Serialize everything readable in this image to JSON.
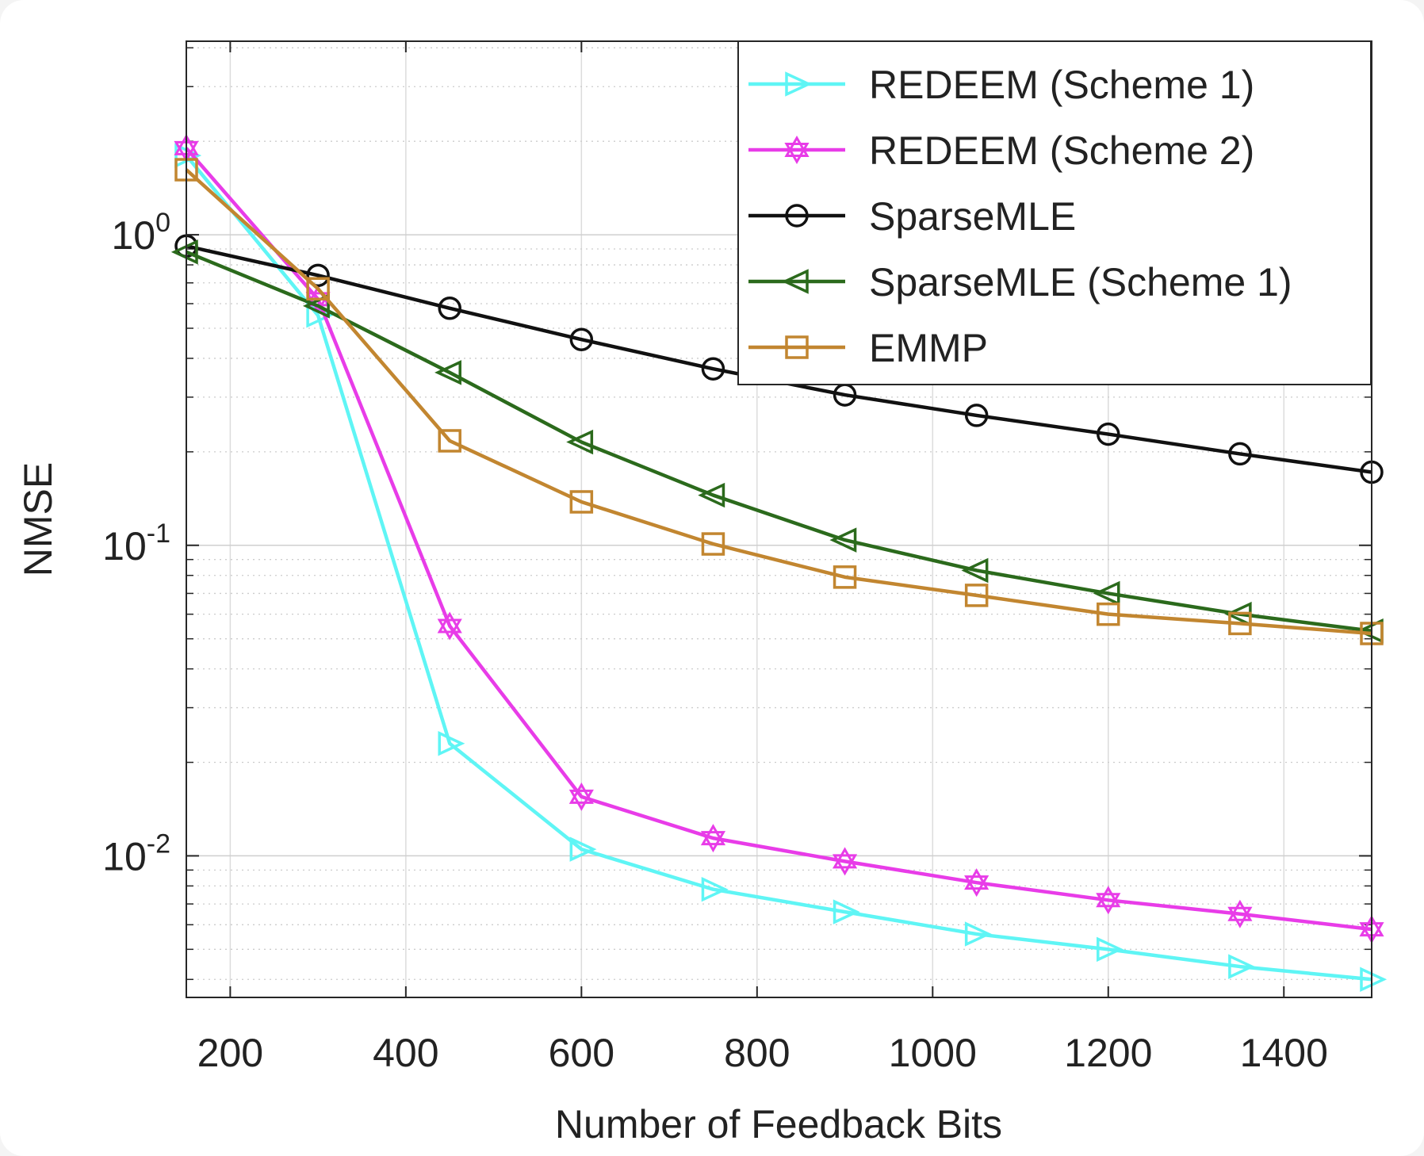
{
  "chart_data": {
    "type": "line",
    "xlabel": "Number of Feedback Bits",
    "ylabel": "NMSE",
    "yscale": "log",
    "xlim": [
      150,
      1500
    ],
    "ylim": [
      0.0035,
      4.2
    ],
    "grid": true,
    "legend_position": "top-right",
    "xticks": [
      200,
      400,
      600,
      800,
      1000,
      1200,
      1400
    ],
    "xtick_labels": [
      "200",
      "400",
      "600",
      "800",
      "1000",
      "1200",
      "1400"
    ],
    "yticks": [
      {
        "value": 1,
        "base": "10",
        "exp": "0"
      },
      {
        "value": 0.1,
        "base": "10",
        "exp": "-1"
      },
      {
        "value": 0.01,
        "base": "10",
        "exp": "-2"
      }
    ],
    "x": [
      150,
      300,
      450,
      600,
      750,
      900,
      1050,
      1200,
      1350,
      1500
    ],
    "series": [
      {
        "name": "REDEEM (Scheme 1)",
        "color": "#5ff5f5",
        "marker": "triangle-right",
        "values": [
          1.8,
          0.55,
          0.023,
          0.0105,
          0.0078,
          0.0066,
          0.0056,
          0.005,
          0.0044,
          0.004
        ]
      },
      {
        "name": "REDEEM (Scheme 2)",
        "color": "#e83ce8",
        "marker": "hexagram",
        "values": [
          1.9,
          0.62,
          0.055,
          0.0155,
          0.0114,
          0.0096,
          0.0082,
          0.0072,
          0.0065,
          0.0058
        ]
      },
      {
        "name": "SparseMLE",
        "color": "#111111",
        "marker": "circle",
        "values": [
          0.92,
          0.74,
          0.58,
          0.46,
          0.37,
          0.305,
          0.262,
          0.228,
          0.197,
          0.172
        ]
      },
      {
        "name": "SparseMLE (Scheme 1)",
        "color": "#2b6a1c",
        "marker": "triangle-left",
        "values": [
          0.88,
          0.59,
          0.36,
          0.215,
          0.145,
          0.104,
          0.083,
          0.07,
          0.06,
          0.053
        ]
      },
      {
        "name": "EMMP",
        "color": "#c28630",
        "marker": "square",
        "values": [
          1.62,
          0.67,
          0.217,
          0.138,
          0.101,
          0.079,
          0.069,
          0.06,
          0.056,
          0.052
        ]
      }
    ]
  }
}
